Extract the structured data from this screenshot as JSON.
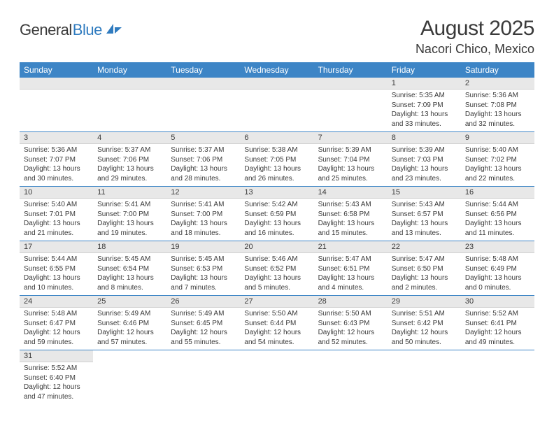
{
  "logo": {
    "text1": "General",
    "text2": "Blue"
  },
  "title": "August 2025",
  "location": "Nacori Chico, Mexico",
  "colors": {
    "header_bg": "#3d85c6",
    "header_text": "#ffffff",
    "daynum_bg": "#e8e8e8",
    "row_divider": "#3d85c6",
    "text": "#3a3a3a",
    "logo_blue": "#2f7bbf"
  },
  "weekdays": [
    "Sunday",
    "Monday",
    "Tuesday",
    "Wednesday",
    "Thursday",
    "Friday",
    "Saturday"
  ],
  "grid": [
    [
      null,
      null,
      null,
      null,
      null,
      {
        "n": "1",
        "sr": "5:35 AM",
        "ss": "7:09 PM",
        "dl": "13 hours and 33 minutes."
      },
      {
        "n": "2",
        "sr": "5:36 AM",
        "ss": "7:08 PM",
        "dl": "13 hours and 32 minutes."
      }
    ],
    [
      {
        "n": "3",
        "sr": "5:36 AM",
        "ss": "7:07 PM",
        "dl": "13 hours and 30 minutes."
      },
      {
        "n": "4",
        "sr": "5:37 AM",
        "ss": "7:06 PM",
        "dl": "13 hours and 29 minutes."
      },
      {
        "n": "5",
        "sr": "5:37 AM",
        "ss": "7:06 PM",
        "dl": "13 hours and 28 minutes."
      },
      {
        "n": "6",
        "sr": "5:38 AM",
        "ss": "7:05 PM",
        "dl": "13 hours and 26 minutes."
      },
      {
        "n": "7",
        "sr": "5:39 AM",
        "ss": "7:04 PM",
        "dl": "13 hours and 25 minutes."
      },
      {
        "n": "8",
        "sr": "5:39 AM",
        "ss": "7:03 PM",
        "dl": "13 hours and 23 minutes."
      },
      {
        "n": "9",
        "sr": "5:40 AM",
        "ss": "7:02 PM",
        "dl": "13 hours and 22 minutes."
      }
    ],
    [
      {
        "n": "10",
        "sr": "5:40 AM",
        "ss": "7:01 PM",
        "dl": "13 hours and 21 minutes."
      },
      {
        "n": "11",
        "sr": "5:41 AM",
        "ss": "7:00 PM",
        "dl": "13 hours and 19 minutes."
      },
      {
        "n": "12",
        "sr": "5:41 AM",
        "ss": "7:00 PM",
        "dl": "13 hours and 18 minutes."
      },
      {
        "n": "13",
        "sr": "5:42 AM",
        "ss": "6:59 PM",
        "dl": "13 hours and 16 minutes."
      },
      {
        "n": "14",
        "sr": "5:43 AM",
        "ss": "6:58 PM",
        "dl": "13 hours and 15 minutes."
      },
      {
        "n": "15",
        "sr": "5:43 AM",
        "ss": "6:57 PM",
        "dl": "13 hours and 13 minutes."
      },
      {
        "n": "16",
        "sr": "5:44 AM",
        "ss": "6:56 PM",
        "dl": "13 hours and 11 minutes."
      }
    ],
    [
      {
        "n": "17",
        "sr": "5:44 AM",
        "ss": "6:55 PM",
        "dl": "13 hours and 10 minutes."
      },
      {
        "n": "18",
        "sr": "5:45 AM",
        "ss": "6:54 PM",
        "dl": "13 hours and 8 minutes."
      },
      {
        "n": "19",
        "sr": "5:45 AM",
        "ss": "6:53 PM",
        "dl": "13 hours and 7 minutes."
      },
      {
        "n": "20",
        "sr": "5:46 AM",
        "ss": "6:52 PM",
        "dl": "13 hours and 5 minutes."
      },
      {
        "n": "21",
        "sr": "5:47 AM",
        "ss": "6:51 PM",
        "dl": "13 hours and 4 minutes."
      },
      {
        "n": "22",
        "sr": "5:47 AM",
        "ss": "6:50 PM",
        "dl": "13 hours and 2 minutes."
      },
      {
        "n": "23",
        "sr": "5:48 AM",
        "ss": "6:49 PM",
        "dl": "13 hours and 0 minutes."
      }
    ],
    [
      {
        "n": "24",
        "sr": "5:48 AM",
        "ss": "6:47 PM",
        "dl": "12 hours and 59 minutes."
      },
      {
        "n": "25",
        "sr": "5:49 AM",
        "ss": "6:46 PM",
        "dl": "12 hours and 57 minutes."
      },
      {
        "n": "26",
        "sr": "5:49 AM",
        "ss": "6:45 PM",
        "dl": "12 hours and 55 minutes."
      },
      {
        "n": "27",
        "sr": "5:50 AM",
        "ss": "6:44 PM",
        "dl": "12 hours and 54 minutes."
      },
      {
        "n": "28",
        "sr": "5:50 AM",
        "ss": "6:43 PM",
        "dl": "12 hours and 52 minutes."
      },
      {
        "n": "29",
        "sr": "5:51 AM",
        "ss": "6:42 PM",
        "dl": "12 hours and 50 minutes."
      },
      {
        "n": "30",
        "sr": "5:52 AM",
        "ss": "6:41 PM",
        "dl": "12 hours and 49 minutes."
      }
    ],
    [
      {
        "n": "31",
        "sr": "5:52 AM",
        "ss": "6:40 PM",
        "dl": "12 hours and 47 minutes."
      },
      null,
      null,
      null,
      null,
      null,
      null
    ]
  ]
}
